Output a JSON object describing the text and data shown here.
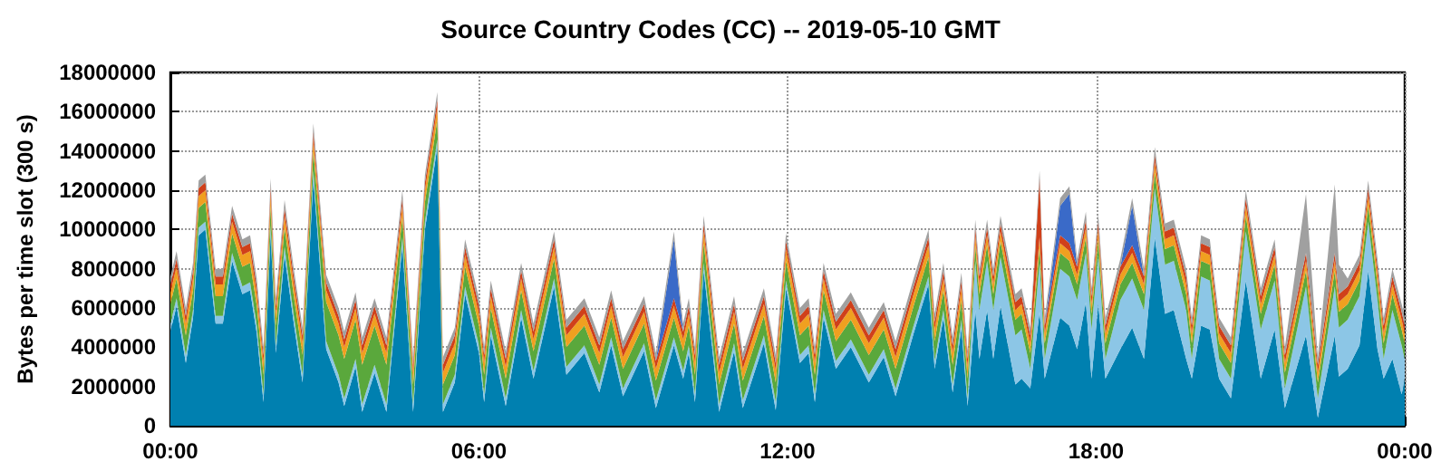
{
  "chart_data": {
    "type": "area",
    "stacked": true,
    "title": "Source Country Codes (CC) -- 2019-05-10 GMT",
    "ylabel": "Bytes per time slot (300 s)",
    "x": [
      0,
      0.12,
      0.3,
      0.44,
      0.55,
      0.68,
      0.88,
      1.02,
      1.2,
      1.4,
      1.55,
      1.68,
      1.81,
      1.95,
      2.05,
      2.22,
      2.4,
      2.57,
      2.78,
      3.03,
      3.27,
      3.38,
      3.6,
      3.73,
      3.97,
      4.2,
      4.51,
      4.72,
      4.95,
      5.19,
      5.3,
      5.53,
      5.73,
      6,
      6.1,
      6.23,
      6.52,
      6.82,
      7.06,
      7.46,
      7.7,
      8.05,
      8.34,
      8.57,
      8.8,
      9.21,
      9.44,
      9.79,
      9.97,
      10.08,
      10.2,
      10.37,
      10.67,
      10.96,
      11.13,
      11.54,
      11.77,
      11.97,
      12.24,
      12.41,
      12.53,
      12.7,
      12.94,
      13.23,
      13.58,
      13.87,
      14.1,
      14.45,
      14.74,
      14.86,
      15.03,
      15.21,
      15.38,
      15.5,
      15.65,
      15.73,
      15.88,
      16,
      16.14,
      16.43,
      16.55,
      16.72,
      16.9,
      17,
      17.3,
      17.48,
      17.63,
      17.8,
      17.91,
      18.04,
      18.18,
      18.47,
      18.7,
      18.93,
      19.14,
      19.34,
      19.51,
      19.75,
      19.86,
      20.04,
      20.21,
      20.39,
      20.62,
      20.91,
      21.2,
      21.47,
      21.67,
      22.08,
      22.31,
      22.64,
      22.72,
      22.89,
      23.12,
      23.29,
      23.47,
      23.59,
      23.76,
      23.94,
      24
    ],
    "series": [
      {
        "color": "#0080b0",
        "values": [
          4800000,
          6100000,
          3200000,
          5500000,
          9700000,
          10000000,
          5200000,
          5200000,
          8400000,
          6700000,
          6900000,
          4700000,
          1200000,
          9800000,
          3700000,
          8700000,
          5200000,
          2200000,
          12600000,
          3900000,
          2200000,
          1000000,
          3000000,
          700000,
          2700000,
          700000,
          9200000,
          700000,
          10000000,
          14200000,
          700000,
          2200000,
          6700000,
          3700000,
          1200000,
          4600000,
          1000000,
          5500000,
          2400000,
          7100000,
          2600000,
          3700000,
          1700000,
          4100000,
          1500000,
          3800000,
          900000,
          4100000,
          2400000,
          3700000,
          1200000,
          7900000,
          700000,
          3800000,
          900000,
          4200000,
          800000,
          7000000,
          3200000,
          3700000,
          1200000,
          5500000,
          2900000,
          4000000,
          2200000,
          3500000,
          1500000,
          4700000,
          7200000,
          2900000,
          5500000,
          1700000,
          5000000,
          1000000,
          5900000,
          3400000,
          5900000,
          3400000,
          6100000,
          2100000,
          2400000,
          1900000,
          5800000,
          2400000,
          5500000,
          5100000,
          3900000,
          6300000,
          2400000,
          6200000,
          2400000,
          3900000,
          5000000,
          3400000,
          9600000,
          5700000,
          5900000,
          3400000,
          2400000,
          5100000,
          4900000,
          2400000,
          1400000,
          7400000,
          2400000,
          4900000,
          900000,
          4600000,
          400000,
          4600000,
          2500000,
          2900000,
          4100000,
          7900000,
          3900000,
          2400000,
          3400000,
          1600000,
          2400000
        ]
      },
      {
        "color": "#8cc6e6",
        "values": [
          400000,
          400000,
          400000,
          400000,
          400000,
          400000,
          400000,
          400000,
          400000,
          400000,
          400000,
          400000,
          400000,
          400000,
          400000,
          400000,
          400000,
          400000,
          400000,
          400000,
          400000,
          400000,
          400000,
          400000,
          400000,
          400000,
          400000,
          400000,
          400000,
          400000,
          400000,
          400000,
          400000,
          400000,
          400000,
          400000,
          400000,
          400000,
          400000,
          400000,
          400000,
          400000,
          400000,
          400000,
          400000,
          400000,
          400000,
          400000,
          400000,
          400000,
          400000,
          400000,
          400000,
          400000,
          400000,
          400000,
          400000,
          400000,
          400000,
          400000,
          400000,
          400000,
          400000,
          400000,
          400000,
          400000,
          400000,
          400000,
          400000,
          400000,
          400000,
          400000,
          400000,
          400000,
          2500000,
          2500000,
          2500000,
          2500000,
          2500000,
          2500000,
          2500000,
          1000000,
          2500000,
          1000000,
          2500000,
          2500000,
          2500000,
          2500000,
          2500000,
          2500000,
          1000000,
          2500000,
          2500000,
          2500000,
          2500000,
          2500000,
          2500000,
          2500000,
          1000000,
          2500000,
          2500000,
          1000000,
          1000000,
          2500000,
          2500000,
          2500000,
          1000000,
          2500000,
          1000000,
          2500000,
          2500000,
          2500000,
          2500000,
          2500000,
          2500000,
          1000000,
          2500000,
          2500000,
          1000000
        ]
      },
      {
        "color": "#5aa83c",
        "values": [
          1000000,
          1000000,
          1000000,
          1000000,
          1000000,
          1000000,
          1000000,
          1000000,
          1000000,
          1000000,
          1000000,
          1000000,
          1000000,
          1000000,
          1000000,
          1000000,
          1000000,
          1000000,
          1000000,
          2000000,
          2000000,
          2000000,
          2000000,
          2000000,
          2000000,
          2000000,
          1000000,
          1000000,
          1000000,
          1000000,
          1000000,
          1000000,
          1000000,
          1000000,
          1000000,
          1000000,
          1000000,
          1000000,
          1000000,
          1000000,
          1000000,
          1000000,
          1000000,
          1000000,
          1000000,
          1000000,
          1000000,
          1000000,
          1000000,
          1000000,
          1000000,
          1000000,
          1000000,
          1000000,
          1000000,
          1000000,
          1000000,
          1000000,
          1000000,
          1000000,
          1000000,
          1000000,
          1000000,
          1000000,
          1000000,
          1000000,
          1000000,
          1000000,
          1000000,
          1000000,
          1000000,
          1000000,
          1000000,
          1000000,
          800000,
          800000,
          800000,
          800000,
          800000,
          800000,
          800000,
          800000,
          800000,
          800000,
          800000,
          800000,
          800000,
          800000,
          800000,
          800000,
          800000,
          800000,
          800000,
          800000,
          800000,
          800000,
          800000,
          800000,
          800000,
          800000,
          800000,
          800000,
          800000,
          800000,
          800000,
          800000,
          800000,
          800000,
          800000,
          800000,
          800000,
          800000,
          800000,
          800000,
          800000,
          800000,
          800000,
          800000,
          800000
        ]
      },
      {
        "color": "#f0a020",
        "values": [
          600000,
          600000,
          600000,
          600000,
          600000,
          600000,
          600000,
          600000,
          600000,
          600000,
          600000,
          600000,
          600000,
          600000,
          600000,
          600000,
          600000,
          600000,
          600000,
          600000,
          600000,
          600000,
          600000,
          600000,
          600000,
          600000,
          600000,
          600000,
          600000,
          600000,
          600000,
          600000,
          600000,
          600000,
          600000,
          600000,
          600000,
          600000,
          600000,
          600000,
          600000,
          600000,
          600000,
          600000,
          600000,
          600000,
          600000,
          600000,
          600000,
          600000,
          600000,
          600000,
          600000,
          600000,
          600000,
          600000,
          600000,
          600000,
          600000,
          600000,
          600000,
          600000,
          600000,
          600000,
          600000,
          600000,
          600000,
          600000,
          600000,
          600000,
          600000,
          600000,
          600000,
          600000,
          500000,
          500000,
          500000,
          500000,
          500000,
          500000,
          500000,
          500000,
          500000,
          500000,
          500000,
          500000,
          500000,
          500000,
          500000,
          500000,
          500000,
          500000,
          500000,
          500000,
          500000,
          500000,
          500000,
          500000,
          500000,
          500000,
          500000,
          500000,
          500000,
          500000,
          500000,
          500000,
          500000,
          500000,
          500000,
          500000,
          500000,
          500000,
          500000,
          500000,
          500000,
          500000,
          500000,
          500000,
          500000
        ]
      },
      {
        "color": "#d0401a",
        "values": [
          400000,
          400000,
          400000,
          400000,
          400000,
          400000,
          400000,
          400000,
          400000,
          400000,
          400000,
          400000,
          400000,
          400000,
          400000,
          400000,
          400000,
          400000,
          400000,
          400000,
          400000,
          400000,
          400000,
          400000,
          400000,
          400000,
          400000,
          400000,
          400000,
          400000,
          400000,
          400000,
          400000,
          400000,
          400000,
          400000,
          400000,
          400000,
          400000,
          400000,
          400000,
          400000,
          400000,
          400000,
          400000,
          400000,
          400000,
          400000,
          400000,
          400000,
          400000,
          400000,
          400000,
          400000,
          400000,
          400000,
          400000,
          400000,
          400000,
          400000,
          400000,
          400000,
          400000,
          400000,
          400000,
          400000,
          400000,
          400000,
          400000,
          400000,
          400000,
          400000,
          400000,
          400000,
          400000,
          400000,
          400000,
          400000,
          400000,
          400000,
          400000,
          400000,
          3000000,
          400000,
          400000,
          400000,
          400000,
          400000,
          400000,
          400000,
          400000,
          400000,
          400000,
          400000,
          400000,
          400000,
          400000,
          400000,
          400000,
          400000,
          400000,
          400000,
          400000,
          400000,
          400000,
          400000,
          400000,
          400000,
          400000,
          400000,
          400000,
          400000,
          400000,
          400000,
          400000,
          400000,
          400000,
          400000,
          400000
        ]
      },
      {
        "color": "#3a6ac8",
        "values": [
          0,
          0,
          0,
          0,
          0,
          0,
          0,
          0,
          0,
          0,
          0,
          0,
          0,
          0,
          0,
          0,
          0,
          0,
          0,
          0,
          0,
          0,
          0,
          0,
          0,
          0,
          0,
          0,
          0,
          0,
          0,
          0,
          0,
          0,
          0,
          0,
          0,
          0,
          0,
          0,
          0,
          0,
          0,
          0,
          0,
          0,
          0,
          3000000,
          0,
          0,
          0,
          0,
          0,
          0,
          0,
          0,
          0,
          0,
          0,
          0,
          0,
          0,
          0,
          0,
          0,
          0,
          0,
          0,
          0,
          0,
          0,
          0,
          0,
          0,
          0,
          0,
          0,
          0,
          0,
          0,
          0,
          0,
          0,
          0,
          1500000,
          2500000,
          0,
          0,
          0,
          0,
          0,
          0,
          2000000,
          0,
          0,
          0,
          0,
          0,
          0,
          0,
          0,
          0,
          0,
          0,
          0,
          0,
          0,
          0,
          0,
          0,
          0,
          0,
          0,
          0,
          0,
          0,
          0,
          0,
          0
        ]
      },
      {
        "color": "#a0a0a0",
        "values": [
          400000,
          400000,
          400000,
          400000,
          400000,
          400000,
          400000,
          400000,
          400000,
          400000,
          400000,
          400000,
          400000,
          400000,
          400000,
          400000,
          400000,
          400000,
          400000,
          400000,
          400000,
          400000,
          400000,
          400000,
          400000,
          400000,
          400000,
          400000,
          400000,
          400000,
          400000,
          400000,
          400000,
          400000,
          400000,
          400000,
          400000,
          400000,
          400000,
          400000,
          400000,
          400000,
          400000,
          400000,
          400000,
          400000,
          400000,
          400000,
          400000,
          400000,
          400000,
          400000,
          400000,
          400000,
          400000,
          400000,
          400000,
          400000,
          400000,
          400000,
          400000,
          400000,
          400000,
          400000,
          400000,
          400000,
          400000,
          400000,
          400000,
          400000,
          400000,
          400000,
          400000,
          400000,
          400000,
          400000,
          400000,
          400000,
          400000,
          400000,
          400000,
          400000,
          400000,
          400000,
          400000,
          400000,
          400000,
          400000,
          400000,
          400000,
          400000,
          400000,
          400000,
          400000,
          400000,
          400000,
          400000,
          400000,
          400000,
          400000,
          400000,
          400000,
          400000,
          400000,
          400000,
          400000,
          400000,
          3000000,
          400000,
          3500000,
          1500000,
          400000,
          400000,
          400000,
          400000,
          400000,
          400000,
          400000,
          400000
        ]
      }
    ],
    "xlim": [
      0,
      24
    ],
    "xticks": [
      {
        "value": 0,
        "label": "00:00"
      },
      {
        "value": 6,
        "label": "06:00"
      },
      {
        "value": 12,
        "label": "12:00"
      },
      {
        "value": 18,
        "label": "18:00"
      },
      {
        "value": 24,
        "label": "00:00"
      }
    ],
    "ylim": [
      0,
      18000000
    ],
    "yticks": [
      0,
      2000000,
      4000000,
      6000000,
      8000000,
      10000000,
      12000000,
      14000000,
      16000000,
      18000000
    ],
    "grid": true
  }
}
